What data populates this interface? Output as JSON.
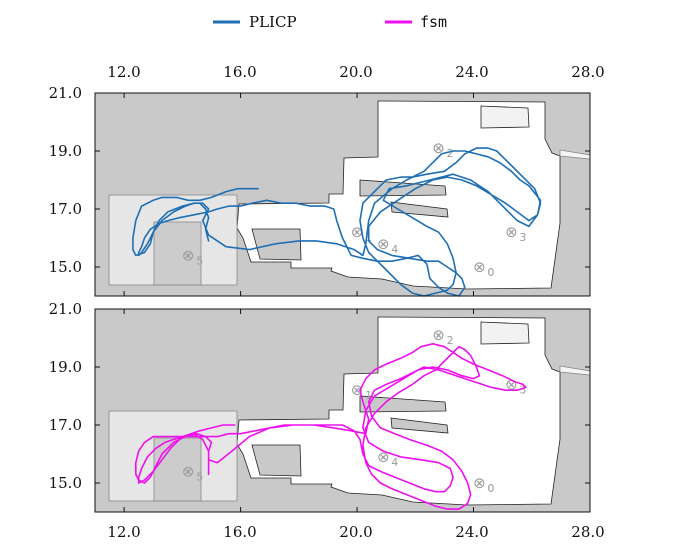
{
  "chart_data": {
    "type": "line",
    "legend": {
      "placement": "top-center",
      "entries": [
        {
          "label": "PLICP",
          "color": "#1f6fb4",
          "mono": false
        },
        {
          "label": "fsm",
          "color": "#ee11ee",
          "mono": true
        }
      ]
    },
    "x_ticks_top": [
      "12.0",
      "16.0",
      "20.0",
      "24.0",
      "28.0"
    ],
    "x_ticks_bottom": [
      "12.0",
      "16.0",
      "20.0",
      "24.0",
      "28.0"
    ],
    "y_tick_labels_top": [
      "21.0",
      "19.0",
      "17.0",
      "15.0"
    ],
    "y_tick_labels_bottom": [
      "21.0",
      "19.0",
      "17.0",
      "15.0"
    ],
    "xlim": [
      11.0,
      28.0
    ],
    "panels": [
      {
        "name": "top",
        "ylim": [
          14.0,
          21.0
        ],
        "grid": false,
        "markers": [
          {
            "symbol": "⊗",
            "sub": "0",
            "x": 24.2,
            "y": 15.0
          },
          {
            "symbol": "⊗",
            "sub": "1",
            "x": 20.0,
            "y": 16.2
          },
          {
            "symbol": "⊗",
            "sub": "2",
            "x": 22.8,
            "y": 19.1
          },
          {
            "symbol": "⊗",
            "sub": "3",
            "x": 25.3,
            "y": 16.2
          },
          {
            "symbol": "⊗",
            "sub": "4",
            "x": 20.9,
            "y": 15.8
          },
          {
            "symbol": "⊗",
            "sub": "5",
            "x": 14.2,
            "y": 15.4
          }
        ],
        "series": [
          {
            "name": "PLICP",
            "color": "#1f6fb4",
            "x": [
              16.6,
              15.9,
              15.5,
              15.0,
              14.6,
              14.2,
              13.8,
              13.3,
              13.0,
              12.6,
              12.4,
              12.3,
              12.3,
              12.4,
              12.7,
              12.9,
              13.0,
              13.2,
              13.5,
              14.0,
              14.4,
              14.7,
              14.9,
              14.7,
              14.9,
              15.5,
              16.3,
              17.2,
              18.0,
              18.6,
              19.3,
              19.9,
              20.2,
              20.3,
              20.4,
              20.6,
              21.2,
              21.7,
              22.1,
              22.3,
              22.6,
              22.9,
              23.3,
              23.7,
              24.1,
              24.5,
              24.9,
              25.3,
              25.6,
              25.9,
              26.3,
              26.2,
              25.9,
              25.5,
              25.0,
              24.5,
              23.9,
              23.3,
              22.5,
              21.7,
              21.1,
              20.9,
              21.4,
              21.9,
              22.4,
              22.8,
              23.1,
              23.3,
              23.4,
              23.3,
              23.1,
              22.7,
              22.3,
              21.9,
              21.5,
              20.9,
              20.4,
              20.2,
              20.1,
              20.2,
              20.6,
              21.0,
              21.5,
              21.9,
              22.4,
              23.0,
              23.4,
              23.7,
              24.1,
              24.5,
              24.8,
              25.0,
              25.3,
              25.7,
              26.1,
              26.3,
              26.2,
              25.9,
              25.5,
              25.1,
              24.6,
              24.1,
              23.6,
              23.1,
              22.6,
              22.0,
              21.4,
              20.8,
              20.4,
              20.4,
              20.7,
              21.2,
              21.8,
              22.4,
              22.8,
              23.1,
              23.4,
              23.6,
              23.7,
              23.5,
              23.1,
              22.8,
              22.5,
              22.4,
              22.1,
              21.7,
              21.2,
              20.7,
              20.2,
              19.8,
              19.5,
              19.3,
              19.2,
              18.9,
              18.4,
              17.9,
              17.4,
              16.9,
              16.4,
              16.0,
              15.6,
              15.2,
              14.9,
              14.4,
              13.9,
              13.5,
              13.2,
              12.9,
              12.7,
              12.6,
              12.5,
              12.5,
              12.6,
              12.8,
              13.0,
              13.3,
              13.7,
              14.1,
              14.4,
              14.6,
              14.8,
              14.9,
              14.8,
              14.9
            ],
            "y": [
              17.7,
              17.7,
              17.6,
              17.4,
              17.3,
              17.3,
              17.4,
              17.4,
              17.3,
              17.1,
              16.6,
              16.0,
              15.6,
              15.4,
              15.5,
              15.8,
              16.2,
              16.6,
              16.9,
              17.1,
              17.2,
              17.2,
              17.0,
              16.6,
              16.1,
              15.7,
              15.6,
              15.8,
              15.9,
              15.9,
              15.8,
              15.6,
              15.4,
              15.8,
              16.6,
              17.2,
              17.7,
              18.0,
              18.2,
              18.3,
              18.6,
              18.9,
              19.0,
              19.0,
              18.9,
              18.8,
              18.6,
              18.3,
              18.0,
              17.8,
              17.3,
              16.8,
              16.4,
              16.6,
              17.1,
              17.6,
              18.0,
              18.2,
              18.0,
              17.8,
              17.7,
              17.3,
              17.0,
              16.7,
              16.4,
              16.2,
              15.8,
              15.3,
              14.8,
              14.4,
              14.2,
              14.1,
              14.0,
              14.1,
              14.4,
              15.0,
              15.5,
              16.0,
              16.6,
              17.2,
              17.6,
              18.0,
              18.1,
              18.1,
              18.2,
              18.3,
              18.6,
              18.9,
              19.1,
              19.1,
              19.0,
              18.8,
              18.5,
              18.1,
              17.7,
              17.2,
              16.8,
              16.6,
              16.9,
              17.2,
              17.5,
              17.8,
              18.0,
              18.1,
              18.0,
              17.7,
              17.3,
              16.9,
              16.4,
              15.9,
              15.6,
              15.4,
              15.3,
              15.2,
              15.2,
              15.0,
              14.8,
              14.6,
              14.3,
              14.0,
              14.1,
              14.3,
              14.6,
              15.1,
              15.4,
              15.3,
              15.2,
              15.2,
              15.3,
              15.4,
              16.0,
              16.6,
              17.0,
              17.1,
              17.1,
              17.2,
              17.2,
              17.3,
              17.2,
              17.1,
              17.1,
              17.0,
              16.9,
              16.8,
              16.7,
              16.6,
              16.5,
              16.3,
              16.0,
              15.7,
              15.5,
              15.4,
              15.5,
              15.8,
              16.2,
              16.6,
              16.9,
              17.1,
              17.2,
              17.2,
              17.0,
              16.7,
              16.3,
              15.9
            ]
          }
        ]
      },
      {
        "name": "bottom",
        "ylim": [
          14.0,
          21.0
        ],
        "grid": false,
        "markers": [
          {
            "symbol": "⊗",
            "sub": "0",
            "x": 24.2,
            "y": 15.0
          },
          {
            "symbol": "⊗",
            "sub": "1",
            "x": 20.0,
            "y": 18.2
          },
          {
            "symbol": "⊗",
            "sub": "2",
            "x": 22.8,
            "y": 20.1
          },
          {
            "symbol": "⊗",
            "sub": "3",
            "x": 25.3,
            "y": 18.4
          },
          {
            "symbol": "⊗",
            "sub": "4",
            "x": 20.9,
            "y": 15.9
          },
          {
            "symbol": "⊗",
            "sub": "5",
            "x": 14.2,
            "y": 15.4
          }
        ],
        "series": [
          {
            "name": "fsm",
            "color": "#ee11ee",
            "x": [
              15.8,
              15.4,
              15.0,
              14.6,
              14.3,
              14.0,
              13.7,
              13.3,
              13.0,
              12.7,
              12.5,
              12.4,
              12.4,
              12.5,
              12.7,
              12.9,
              13.1,
              13.3,
              13.7,
              14.1,
              14.5,
              14.8,
              15.0,
              14.9,
              14.9,
              15.2,
              15.7,
              16.3,
              17.0,
              17.8,
              18.5,
              19.2,
              19.8,
              20.3,
              20.4,
              20.2,
              20.1,
              20.3,
              20.6,
              21.0,
              21.5,
              21.9,
              22.2,
              22.6,
              23.0,
              23.3,
              23.6,
              24.0,
              24.5,
              25.0,
              25.4,
              25.7,
              25.8,
              25.5,
              25.1,
              24.6,
              24.0,
              23.4,
              22.8,
              22.3,
              21.9,
              21.5,
              21.0,
              20.6,
              20.4,
              20.5,
              20.8,
              21.3,
              21.8,
              22.4,
              22.9,
              23.3,
              23.6,
              23.8,
              23.9,
              23.8,
              23.5,
              23.1,
              22.7,
              22.2,
              21.7,
              21.2,
              20.8,
              20.5,
              20.3,
              20.2,
              20.3,
              20.6,
              21.0,
              21.4,
              21.9,
              22.3,
              22.7,
              23.0,
              23.3,
              23.5,
              23.7,
              23.9,
              24.1,
              24.2,
              24.0,
              23.6,
              23.1,
              22.6,
              22.1,
              21.6,
              21.1,
              20.6,
              20.3,
              20.2,
              20.4,
              20.9,
              21.5,
              22.2,
              22.8,
              23.2,
              23.3,
              23.2,
              23.0,
              22.7,
              22.3,
              21.8,
              21.3,
              20.8,
              20.4,
              20.2,
              20.1,
              19.9,
              19.5,
              19.0,
              18.5,
              18.0,
              17.5,
              17.0,
              16.5,
              16.0,
              15.6,
              15.2,
              14.9,
              14.6,
              14.3,
              14.0,
              13.7,
              13.4,
              13.1,
              12.8,
              12.6,
              12.5,
              12.5,
              12.7,
              13.0,
              13.3,
              13.6,
              14.0,
              14.4,
              14.7,
              14.9,
              14.9,
              14.9
            ],
            "y": [
              17.0,
              17.0,
              16.9,
              16.8,
              16.7,
              16.6,
              16.6,
              16.6,
              16.6,
              16.4,
              16.1,
              15.7,
              15.3,
              15.1,
              15.0,
              15.2,
              15.6,
              16.0,
              16.4,
              16.6,
              16.7,
              16.6,
              16.4,
              16.1,
              15.8,
              15.7,
              16.1,
              16.6,
              16.9,
              17.0,
              17.0,
              16.9,
              16.8,
              16.7,
              17.2,
              17.8,
              18.2,
              18.6,
              18.9,
              19.1,
              19.3,
              19.5,
              19.7,
              19.8,
              19.7,
              19.5,
              19.3,
              19.1,
              18.9,
              18.7,
              18.5,
              18.4,
              18.3,
              18.2,
              18.2,
              18.3,
              18.5,
              18.7,
              18.9,
              19.0,
              18.8,
              18.6,
              18.4,
              18.2,
              17.8,
              17.3,
              16.9,
              16.7,
              16.5,
              16.3,
              16.1,
              15.8,
              15.4,
              15.0,
              14.6,
              14.3,
              14.1,
              14.1,
              14.2,
              14.4,
              14.6,
              14.8,
              15.0,
              15.3,
              15.7,
              16.3,
              16.9,
              17.4,
              17.8,
              18.1,
              18.4,
              18.7,
              18.9,
              19.2,
              19.5,
              19.7,
              19.6,
              19.4,
              19.0,
              18.7,
              18.6,
              18.7,
              18.9,
              19.0,
              18.9,
              18.6,
              18.3,
              18.0,
              17.5,
              16.9,
              16.4,
              16.1,
              15.9,
              15.8,
              15.7,
              15.5,
              15.2,
              14.9,
              14.7,
              14.7,
              14.8,
              15.0,
              15.2,
              15.4,
              15.6,
              16.0,
              16.5,
              16.8,
              17.0,
              17.0,
              17.0,
              17.0,
              17.0,
              16.9,
              16.8,
              16.7,
              16.7,
              16.6,
              16.6,
              16.6,
              16.6,
              16.6,
              16.5,
              16.4,
              16.2,
              15.9,
              15.5,
              15.2,
              15.0,
              15.1,
              15.4,
              15.8,
              16.2,
              16.6,
              16.7,
              16.5,
              16.1,
              15.7,
              15.3
            ]
          }
        ]
      }
    ]
  }
}
